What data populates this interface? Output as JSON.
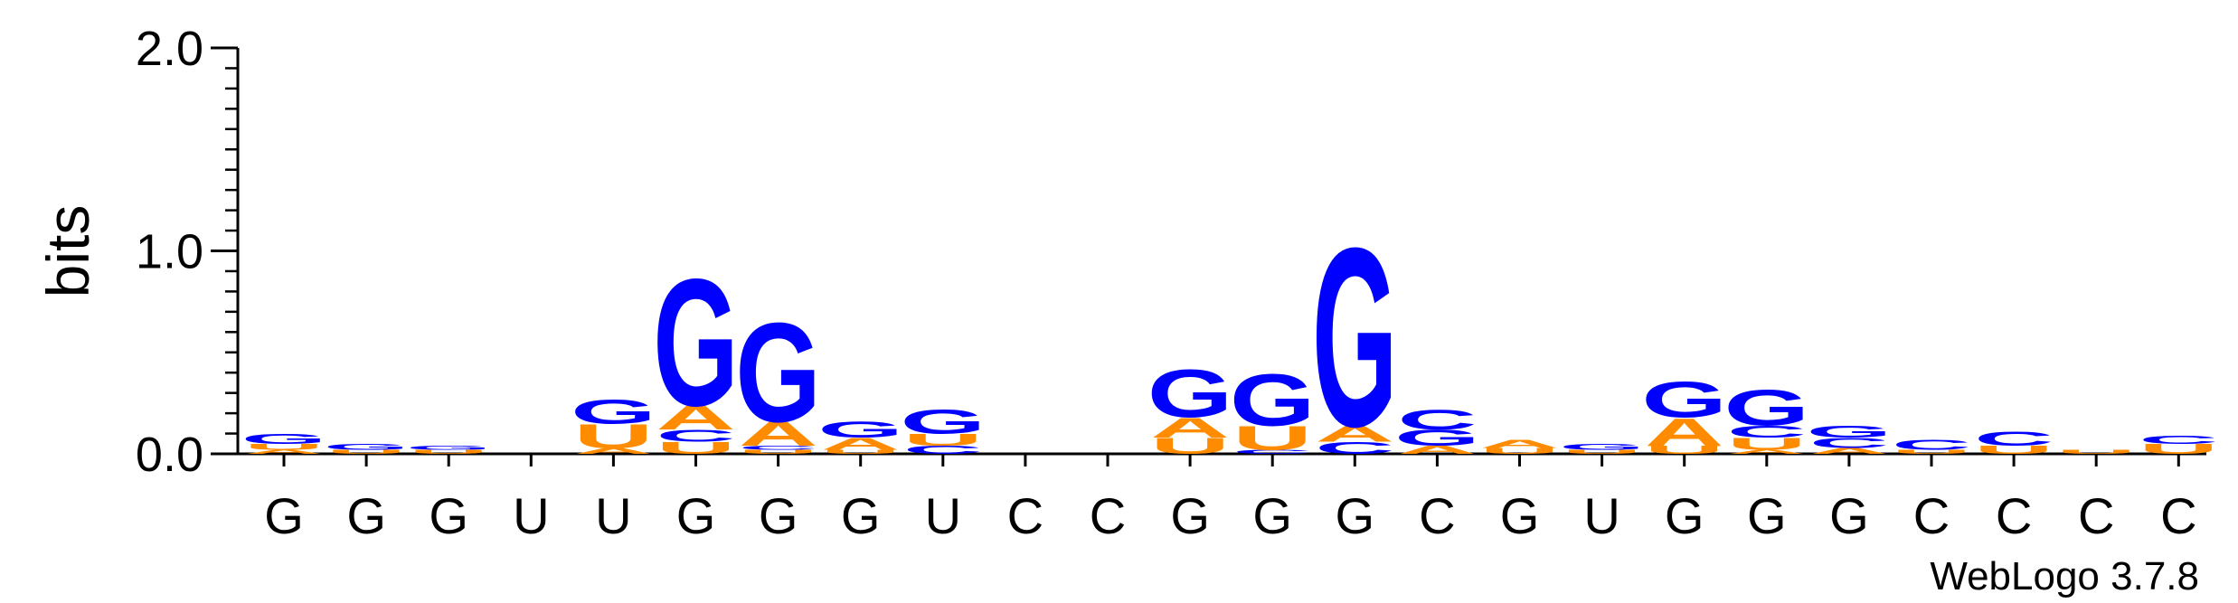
{
  "chart_data": {
    "type": "sequence-logo",
    "ylabel": "bits",
    "ylim": [
      0,
      2.0
    ],
    "yticks": [
      "0.0",
      "1.0",
      "2.0"
    ],
    "credit": "WebLogo 3.7.8",
    "colors": {
      "G": "#0000ff",
      "C": "#0000ff",
      "A": "#ff8c00",
      "U": "#ff8c00"
    },
    "positions": [
      {
        "label": "G",
        "stack": [
          {
            "base": "A",
            "bits": 0.02
          },
          {
            "base": "U",
            "bits": 0.03
          },
          {
            "base": "G",
            "bits": 0.05
          }
        ]
      },
      {
        "label": "G",
        "stack": [
          {
            "base": "U",
            "bits": 0.02
          },
          {
            "base": "G",
            "bits": 0.03
          }
        ]
      },
      {
        "label": "G",
        "stack": [
          {
            "base": "U",
            "bits": 0.02
          },
          {
            "base": "G",
            "bits": 0.02
          }
        ]
      },
      {
        "label": "U",
        "stack": []
      },
      {
        "label": "U",
        "stack": [
          {
            "base": "A",
            "bits": 0.03
          },
          {
            "base": "U",
            "bits": 0.12
          },
          {
            "base": "G",
            "bits": 0.12
          }
        ]
      },
      {
        "label": "G",
        "stack": [
          {
            "base": "U",
            "bits": 0.06
          },
          {
            "base": "C",
            "bits": 0.06
          },
          {
            "base": "A",
            "bits": 0.12
          },
          {
            "base": "G",
            "bits": 0.64
          }
        ]
      },
      {
        "label": "G",
        "stack": [
          {
            "base": "U",
            "bits": 0.02
          },
          {
            "base": "C",
            "bits": 0.02
          },
          {
            "base": "A",
            "bits": 0.12
          },
          {
            "base": "G",
            "bits": 0.5
          }
        ]
      },
      {
        "label": "G",
        "stack": [
          {
            "base": "U",
            "bits": 0.02
          },
          {
            "base": "A",
            "bits": 0.06
          },
          {
            "base": "G",
            "bits": 0.08
          }
        ]
      },
      {
        "label": "U",
        "stack": [
          {
            "base": "C",
            "bits": 0.04
          },
          {
            "base": "U",
            "bits": 0.06
          },
          {
            "base": "G",
            "bits": 0.12
          }
        ]
      },
      {
        "label": "C",
        "stack": []
      },
      {
        "label": "C",
        "stack": []
      },
      {
        "label": "G",
        "stack": [
          {
            "base": "U",
            "bits": 0.08
          },
          {
            "base": "A",
            "bits": 0.1
          },
          {
            "base": "G",
            "bits": 0.24
          }
        ]
      },
      {
        "label": "G",
        "stack": [
          {
            "base": "C",
            "bits": 0.02
          },
          {
            "base": "U",
            "bits": 0.12
          },
          {
            "base": "G",
            "bits": 0.26
          }
        ]
      },
      {
        "label": "G",
        "stack": [
          {
            "base": "C",
            "bits": 0.06
          },
          {
            "base": "A",
            "bits": 0.08
          },
          {
            "base": "G",
            "bits": 0.9
          }
        ]
      },
      {
        "label": "C",
        "stack": [
          {
            "base": "A",
            "bits": 0.04
          },
          {
            "base": "G",
            "bits": 0.08
          },
          {
            "base": "C",
            "bits": 0.1
          }
        ]
      },
      {
        "label": "G",
        "stack": [
          {
            "base": "U",
            "bits": 0.03
          },
          {
            "base": "A",
            "bits": 0.04
          }
        ]
      },
      {
        "label": "U",
        "stack": [
          {
            "base": "U",
            "bits": 0.02
          },
          {
            "base": "G",
            "bits": 0.03
          }
        ]
      },
      {
        "label": "G",
        "stack": [
          {
            "base": "U",
            "bits": 0.04
          },
          {
            "base": "A",
            "bits": 0.14
          },
          {
            "base": "G",
            "bits": 0.18
          }
        ]
      },
      {
        "label": "G",
        "stack": [
          {
            "base": "A",
            "bits": 0.02
          },
          {
            "base": "U",
            "bits": 0.06
          },
          {
            "base": "C",
            "bits": 0.06
          },
          {
            "base": "G",
            "bits": 0.18
          }
        ]
      },
      {
        "label": "G",
        "stack": [
          {
            "base": "A",
            "bits": 0.03
          },
          {
            "base": "C",
            "bits": 0.05
          },
          {
            "base": "G",
            "bits": 0.06
          }
        ]
      },
      {
        "label": "C",
        "stack": [
          {
            "base": "U",
            "bits": 0.02
          },
          {
            "base": "C",
            "bits": 0.05
          }
        ]
      },
      {
        "label": "C",
        "stack": [
          {
            "base": "U",
            "bits": 0.04
          },
          {
            "base": "C",
            "bits": 0.07
          }
        ]
      },
      {
        "label": "C",
        "stack": [
          {
            "base": "U",
            "bits": 0.02
          }
        ]
      },
      {
        "label": "C",
        "stack": [
          {
            "base": "U",
            "bits": 0.05
          },
          {
            "base": "C",
            "bits": 0.04
          }
        ]
      }
    ]
  }
}
